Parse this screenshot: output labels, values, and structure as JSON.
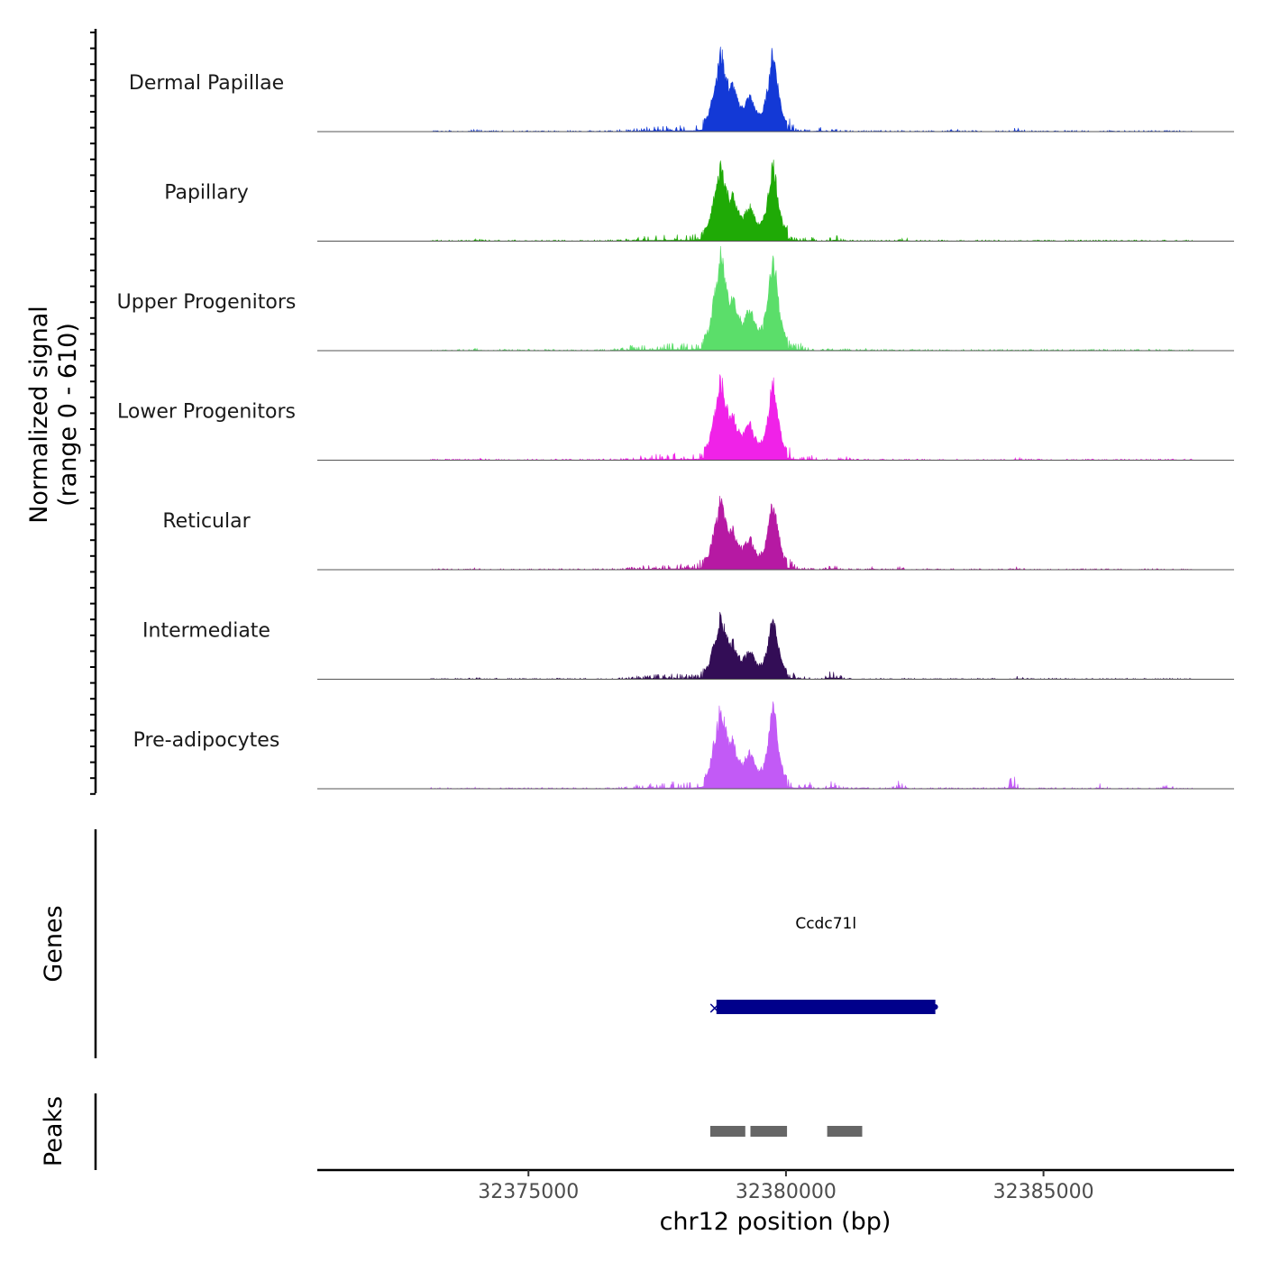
{
  "chart_data": {
    "type": "area",
    "title": "",
    "chromosome": "chr12",
    "xlabel": "chr12 position (bp)",
    "ylabel_line1": "Normalized signal",
    "ylabel_line2": "(range 0 - 610)",
    "xlim": [
      32370900,
      32388700
    ],
    "ylim": [
      0,
      610
    ],
    "x_ticks": [
      32375000,
      32380000,
      32385000
    ],
    "x_tick_labels": [
      "32375000",
      "32380000",
      "32385000"
    ],
    "grid": false,
    "peak_profile": [
      [
        32373800,
        0.01
      ],
      [
        32374000,
        0.02
      ],
      [
        32374200,
        0.01
      ],
      [
        32375000,
        0.01
      ],
      [
        32376500,
        0.01
      ],
      [
        32376900,
        0.02
      ],
      [
        32377200,
        0.04
      ],
      [
        32377500,
        0.05
      ],
      [
        32377800,
        0.06
      ],
      [
        32378050,
        0.05
      ],
      [
        32378200,
        0.06
      ],
      [
        32378350,
        0.1
      ],
      [
        32378500,
        0.22
      ],
      [
        32378600,
        0.55
      ],
      [
        32378680,
        0.78
      ],
      [
        32378720,
        1.0
      ],
      [
        32378770,
        0.92
      ],
      [
        32378830,
        0.7
      ],
      [
        32378900,
        0.55
      ],
      [
        32378970,
        0.6
      ],
      [
        32379050,
        0.4
      ],
      [
        32379150,
        0.3
      ],
      [
        32379250,
        0.4
      ],
      [
        32379310,
        0.45
      ],
      [
        32379380,
        0.32
      ],
      [
        32379450,
        0.22
      ],
      [
        32379550,
        0.25
      ],
      [
        32379620,
        0.45
      ],
      [
        32379680,
        0.7
      ],
      [
        32379720,
        0.95
      ],
      [
        32379760,
        0.98
      ],
      [
        32379800,
        0.8
      ],
      [
        32379850,
        0.55
      ],
      [
        32379900,
        0.35
      ],
      [
        32379950,
        0.2
      ],
      [
        32380050,
        0.12
      ],
      [
        32380150,
        0.06
      ],
      [
        32380300,
        0.03
      ],
      [
        32380600,
        0.01
      ],
      [
        32381000,
        0.02
      ],
      [
        32381300,
        0.01
      ],
      [
        32382500,
        0.01
      ],
      [
        32384400,
        0.01
      ],
      [
        32385200,
        0.01
      ],
      [
        32386500,
        0.01
      ],
      [
        32387800,
        0.01
      ]
    ],
    "series": [
      {
        "name": "Dermal Papillae",
        "color": "#1339D6",
        "max": 0.78,
        "bumps": [
          [
            32380650,
            0.03
          ],
          [
            32384500,
            0.03
          ],
          [
            32383300,
            0.02
          ]
        ]
      },
      {
        "name": "Papillary",
        "color": "#1FAA06",
        "max": 0.76,
        "bumps": [
          [
            32380450,
            0.04
          ],
          [
            32380950,
            0.05
          ],
          [
            32382300,
            0.02
          ]
        ]
      },
      {
        "name": "Upper Progenitors",
        "color": "#5BDE6A",
        "max": 0.93,
        "bumps": [
          [
            32377000,
            0.02
          ],
          [
            32380300,
            0.02
          ],
          [
            32381500,
            0.01
          ]
        ]
      },
      {
        "name": "Lower Progenitors",
        "color": "#F022E8",
        "max": 0.78,
        "bumps": [
          [
            32380500,
            0.03
          ],
          [
            32381200,
            0.02
          ],
          [
            32384500,
            0.02
          ]
        ]
      },
      {
        "name": "Reticular",
        "color": "#B619A3",
        "max": 0.68,
        "bumps": [
          [
            32380900,
            0.06
          ],
          [
            32381700,
            0.03
          ],
          [
            32382200,
            0.02
          ],
          [
            32384500,
            0.02
          ]
        ]
      },
      {
        "name": "Intermediate",
        "color": "#330D56",
        "max": 0.62,
        "bumps": [
          [
            32380850,
            0.1
          ],
          [
            32381000,
            0.07
          ],
          [
            32384500,
            0.03
          ]
        ]
      },
      {
        "name": "Pre-adipocytes",
        "color": "#C25AF6",
        "max": 0.8,
        "bumps": [
          [
            32380400,
            0.06
          ],
          [
            32380900,
            0.08
          ],
          [
            32381500,
            0.05
          ],
          [
            32382200,
            0.07
          ],
          [
            32384400,
            0.11
          ],
          [
            32386100,
            0.04
          ],
          [
            32387400,
            0.04
          ]
        ]
      }
    ],
    "genes_track": {
      "label": "Genes",
      "genes": [
        {
          "name": "Ccdc71l",
          "start": 32378650,
          "end": 32382900,
          "strand": "-",
          "color": "#00008B"
        }
      ]
    },
    "peaks_track": {
      "label": "Peaks",
      "color": "#666666",
      "peaks": [
        {
          "start": 32378530,
          "end": 32379210
        },
        {
          "start": 32379310,
          "end": 32380020
        },
        {
          "start": 32380800,
          "end": 32381480
        }
      ]
    }
  }
}
